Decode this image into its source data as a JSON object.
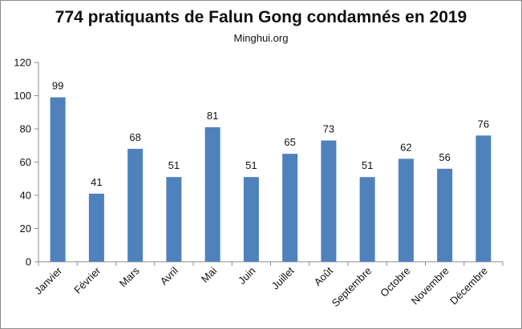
{
  "chart_data": {
    "type": "bar",
    "title": "774 pratiquants de Falun Gong condamnés en 2019",
    "subtitle": "Minghui.org",
    "categories": [
      "Janvier",
      "Février",
      "Mars",
      "Avril",
      "Mai",
      "Juin",
      "Juillet",
      "Août",
      "Septembre",
      "Octobre",
      "Novembre",
      "Décembre"
    ],
    "values": [
      99,
      41,
      68,
      51,
      81,
      51,
      65,
      73,
      51,
      62,
      56,
      76
    ],
    "ylim": [
      0,
      120
    ],
    "yticks": [
      0,
      20,
      40,
      60,
      80,
      100,
      120
    ],
    "xlabel": "",
    "ylabel": "",
    "grid": false,
    "bar_color": "#4f81bd",
    "data_labels": true
  }
}
